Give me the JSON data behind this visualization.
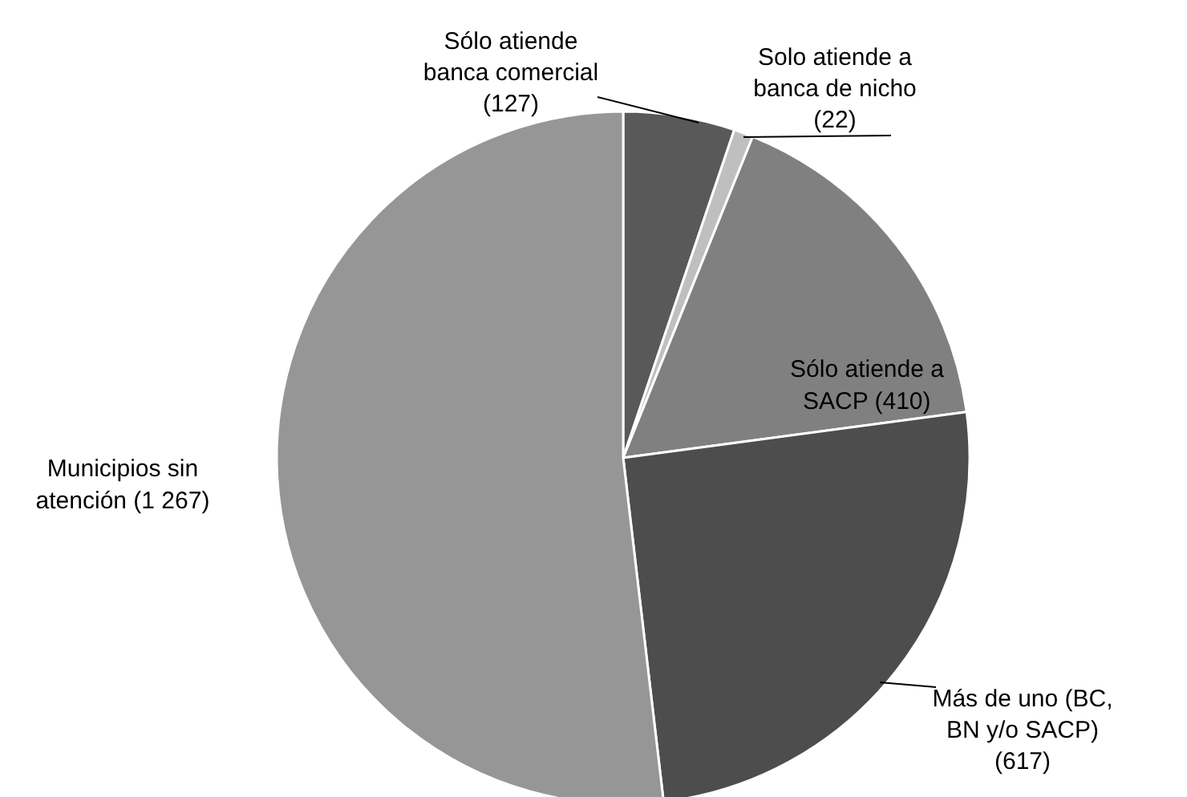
{
  "chart_data": {
    "type": "pie",
    "categories": [
      "Sólo atiende\nbanca comercial",
      "Solo atiende a\nbanca de nicho",
      "Sólo atiende a\nSACP",
      "Más de uno (BC,\nBN y/o SACP)",
      "Municipios sin\natención"
    ],
    "values": [
      127,
      22,
      410,
      617,
      1267
    ],
    "value_labels": [
      "(127)",
      "(22)",
      "(410)",
      "(617)",
      "(1 267)"
    ],
    "colors": [
      "#595959",
      "#bfbfbf",
      "#808080",
      "#4d4d4d",
      "#969696"
    ]
  }
}
